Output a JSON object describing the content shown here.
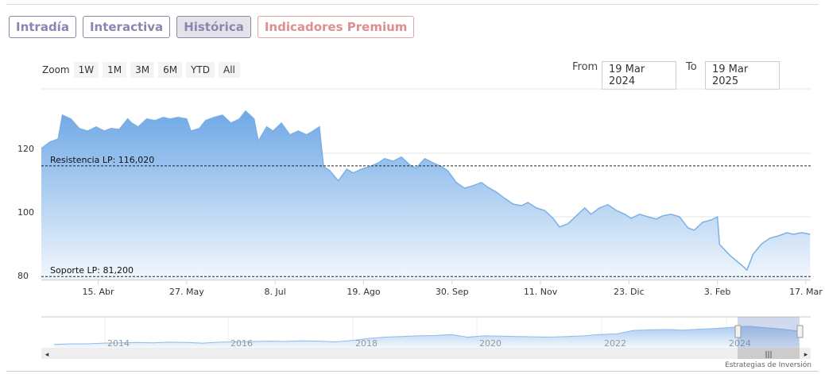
{
  "tabs": [
    "Intradía",
    "Interactiva",
    "Histórica",
    "Indicadores Premium"
  ],
  "zoom": {
    "label": "Zoom",
    "buttons": [
      "1W",
      "1M",
      "3M",
      "6M",
      "YTD",
      "All"
    ]
  },
  "range": {
    "from_label": "From",
    "from": "19 Mar 2024",
    "to_label": "To",
    "to": "19 Mar 2025"
  },
  "credit": "Estrategias de Inversión",
  "chart_data": {
    "type": "area",
    "x_unit": "days since 19 Mar 2024",
    "ylim": [
      80,
      140
    ],
    "y_ticks": [
      80,
      100,
      120
    ],
    "x_ticks": [
      {
        "day": 27,
        "label": "15. Abr"
      },
      {
        "day": 69,
        "label": "27. May"
      },
      {
        "day": 111,
        "label": "8. Jul"
      },
      {
        "day": 153,
        "label": "19. Ago"
      },
      {
        "day": 195,
        "label": "30. Sep"
      },
      {
        "day": 237,
        "label": "11. Nov"
      },
      {
        "day": 279,
        "label": "23. Dic"
      },
      {
        "day": 321,
        "label": "3. Feb"
      },
      {
        "day": 363,
        "label": "17. Mar"
      }
    ],
    "lines": [
      {
        "label": "Resistencia LP: 116,020",
        "value": 116.02
      },
      {
        "label": "Soporte LP: 81,200",
        "value": 81.2
      }
    ],
    "points": [
      [
        0,
        121.5
      ],
      [
        4,
        123.5
      ],
      [
        8,
        124.5
      ],
      [
        10,
        132
      ],
      [
        14,
        130.8
      ],
      [
        18,
        127.8
      ],
      [
        22,
        127
      ],
      [
        26,
        128.3
      ],
      [
        30,
        127
      ],
      [
        33,
        127.8
      ],
      [
        37,
        127.5
      ],
      [
        41,
        130.8
      ],
      [
        43,
        129.5
      ],
      [
        46,
        128.3
      ],
      [
        50,
        130.8
      ],
      [
        54,
        130.3
      ],
      [
        58,
        131.3
      ],
      [
        61,
        130.8
      ],
      [
        65,
        131.3
      ],
      [
        69,
        130.8
      ],
      [
        71,
        127
      ],
      [
        75,
        127.8
      ],
      [
        78,
        130.3
      ],
      [
        82,
        131.3
      ],
      [
        86,
        132
      ],
      [
        90,
        129.5
      ],
      [
        94,
        130.8
      ],
      [
        97,
        133.3
      ],
      [
        101,
        130.8
      ],
      [
        103,
        123.8
      ],
      [
        107,
        128.3
      ],
      [
        110,
        127
      ],
      [
        114,
        129.5
      ],
      [
        118,
        125.8
      ],
      [
        122,
        127
      ],
      [
        126,
        125.8
      ],
      [
        129,
        127
      ],
      [
        132,
        128.3
      ],
      [
        134,
        115.8
      ],
      [
        137,
        114.5
      ],
      [
        141,
        111.3
      ],
      [
        145,
        115
      ],
      [
        148,
        113.8
      ],
      [
        152,
        115
      ],
      [
        156,
        115.8
      ],
      [
        160,
        117
      ],
      [
        163,
        118.3
      ],
      [
        167,
        117.5
      ],
      [
        171,
        118.8
      ],
      [
        175,
        116.3
      ],
      [
        178,
        115.3
      ],
      [
        182,
        118.3
      ],
      [
        186,
        117
      ],
      [
        190,
        115.8
      ],
      [
        193,
        114.5
      ],
      [
        197,
        110.8
      ],
      [
        201,
        109
      ],
      [
        205,
        109.8
      ],
      [
        209,
        110.8
      ],
      [
        212,
        109.3
      ],
      [
        216,
        107.8
      ],
      [
        220,
        105.8
      ],
      [
        224,
        104
      ],
      [
        228,
        103.5
      ],
      [
        231,
        104.5
      ],
      [
        235,
        102.8
      ],
      [
        239,
        102
      ],
      [
        243,
        99.5
      ],
      [
        246,
        96.8
      ],
      [
        250,
        97.8
      ],
      [
        254,
        100.3
      ],
      [
        258,
        102.8
      ],
      [
        261,
        100.8
      ],
      [
        265,
        102.8
      ],
      [
        269,
        103.8
      ],
      [
        273,
        102
      ],
      [
        277,
        100.8
      ],
      [
        280,
        99.5
      ],
      [
        284,
        100.8
      ],
      [
        288,
        100
      ],
      [
        292,
        99.3
      ],
      [
        295,
        100.3
      ],
      [
        299,
        100.8
      ],
      [
        303,
        100
      ],
      [
        307,
        96.5
      ],
      [
        310,
        95.8
      ],
      [
        314,
        98.3
      ],
      [
        318,
        99
      ],
      [
        321,
        100
      ],
      [
        322,
        91.3
      ],
      [
        327,
        87.8
      ],
      [
        333,
        84.5
      ],
      [
        335,
        83.2
      ],
      [
        338,
        88.3
      ],
      [
        342,
        91.5
      ],
      [
        346,
        93.3
      ],
      [
        350,
        94
      ],
      [
        354,
        95
      ],
      [
        357,
        94.5
      ],
      [
        361,
        95
      ],
      [
        365,
        94.5
      ]
    ],
    "navigator": {
      "year_labels": [
        "2014",
        "2016",
        "2018",
        "2020",
        "2022",
        "2024"
      ],
      "values": [
        40,
        42,
        42,
        44,
        45,
        46,
        45,
        47,
        46,
        44,
        47,
        48,
        49,
        50,
        49,
        51,
        50,
        48,
        52,
        58,
        62,
        64,
        66,
        67,
        70,
        62,
        66,
        65,
        64,
        63,
        62,
        64,
        66,
        70,
        72,
        82,
        84,
        85,
        83,
        86,
        88,
        92,
        95,
        90,
        86,
        80
      ]
    }
  }
}
